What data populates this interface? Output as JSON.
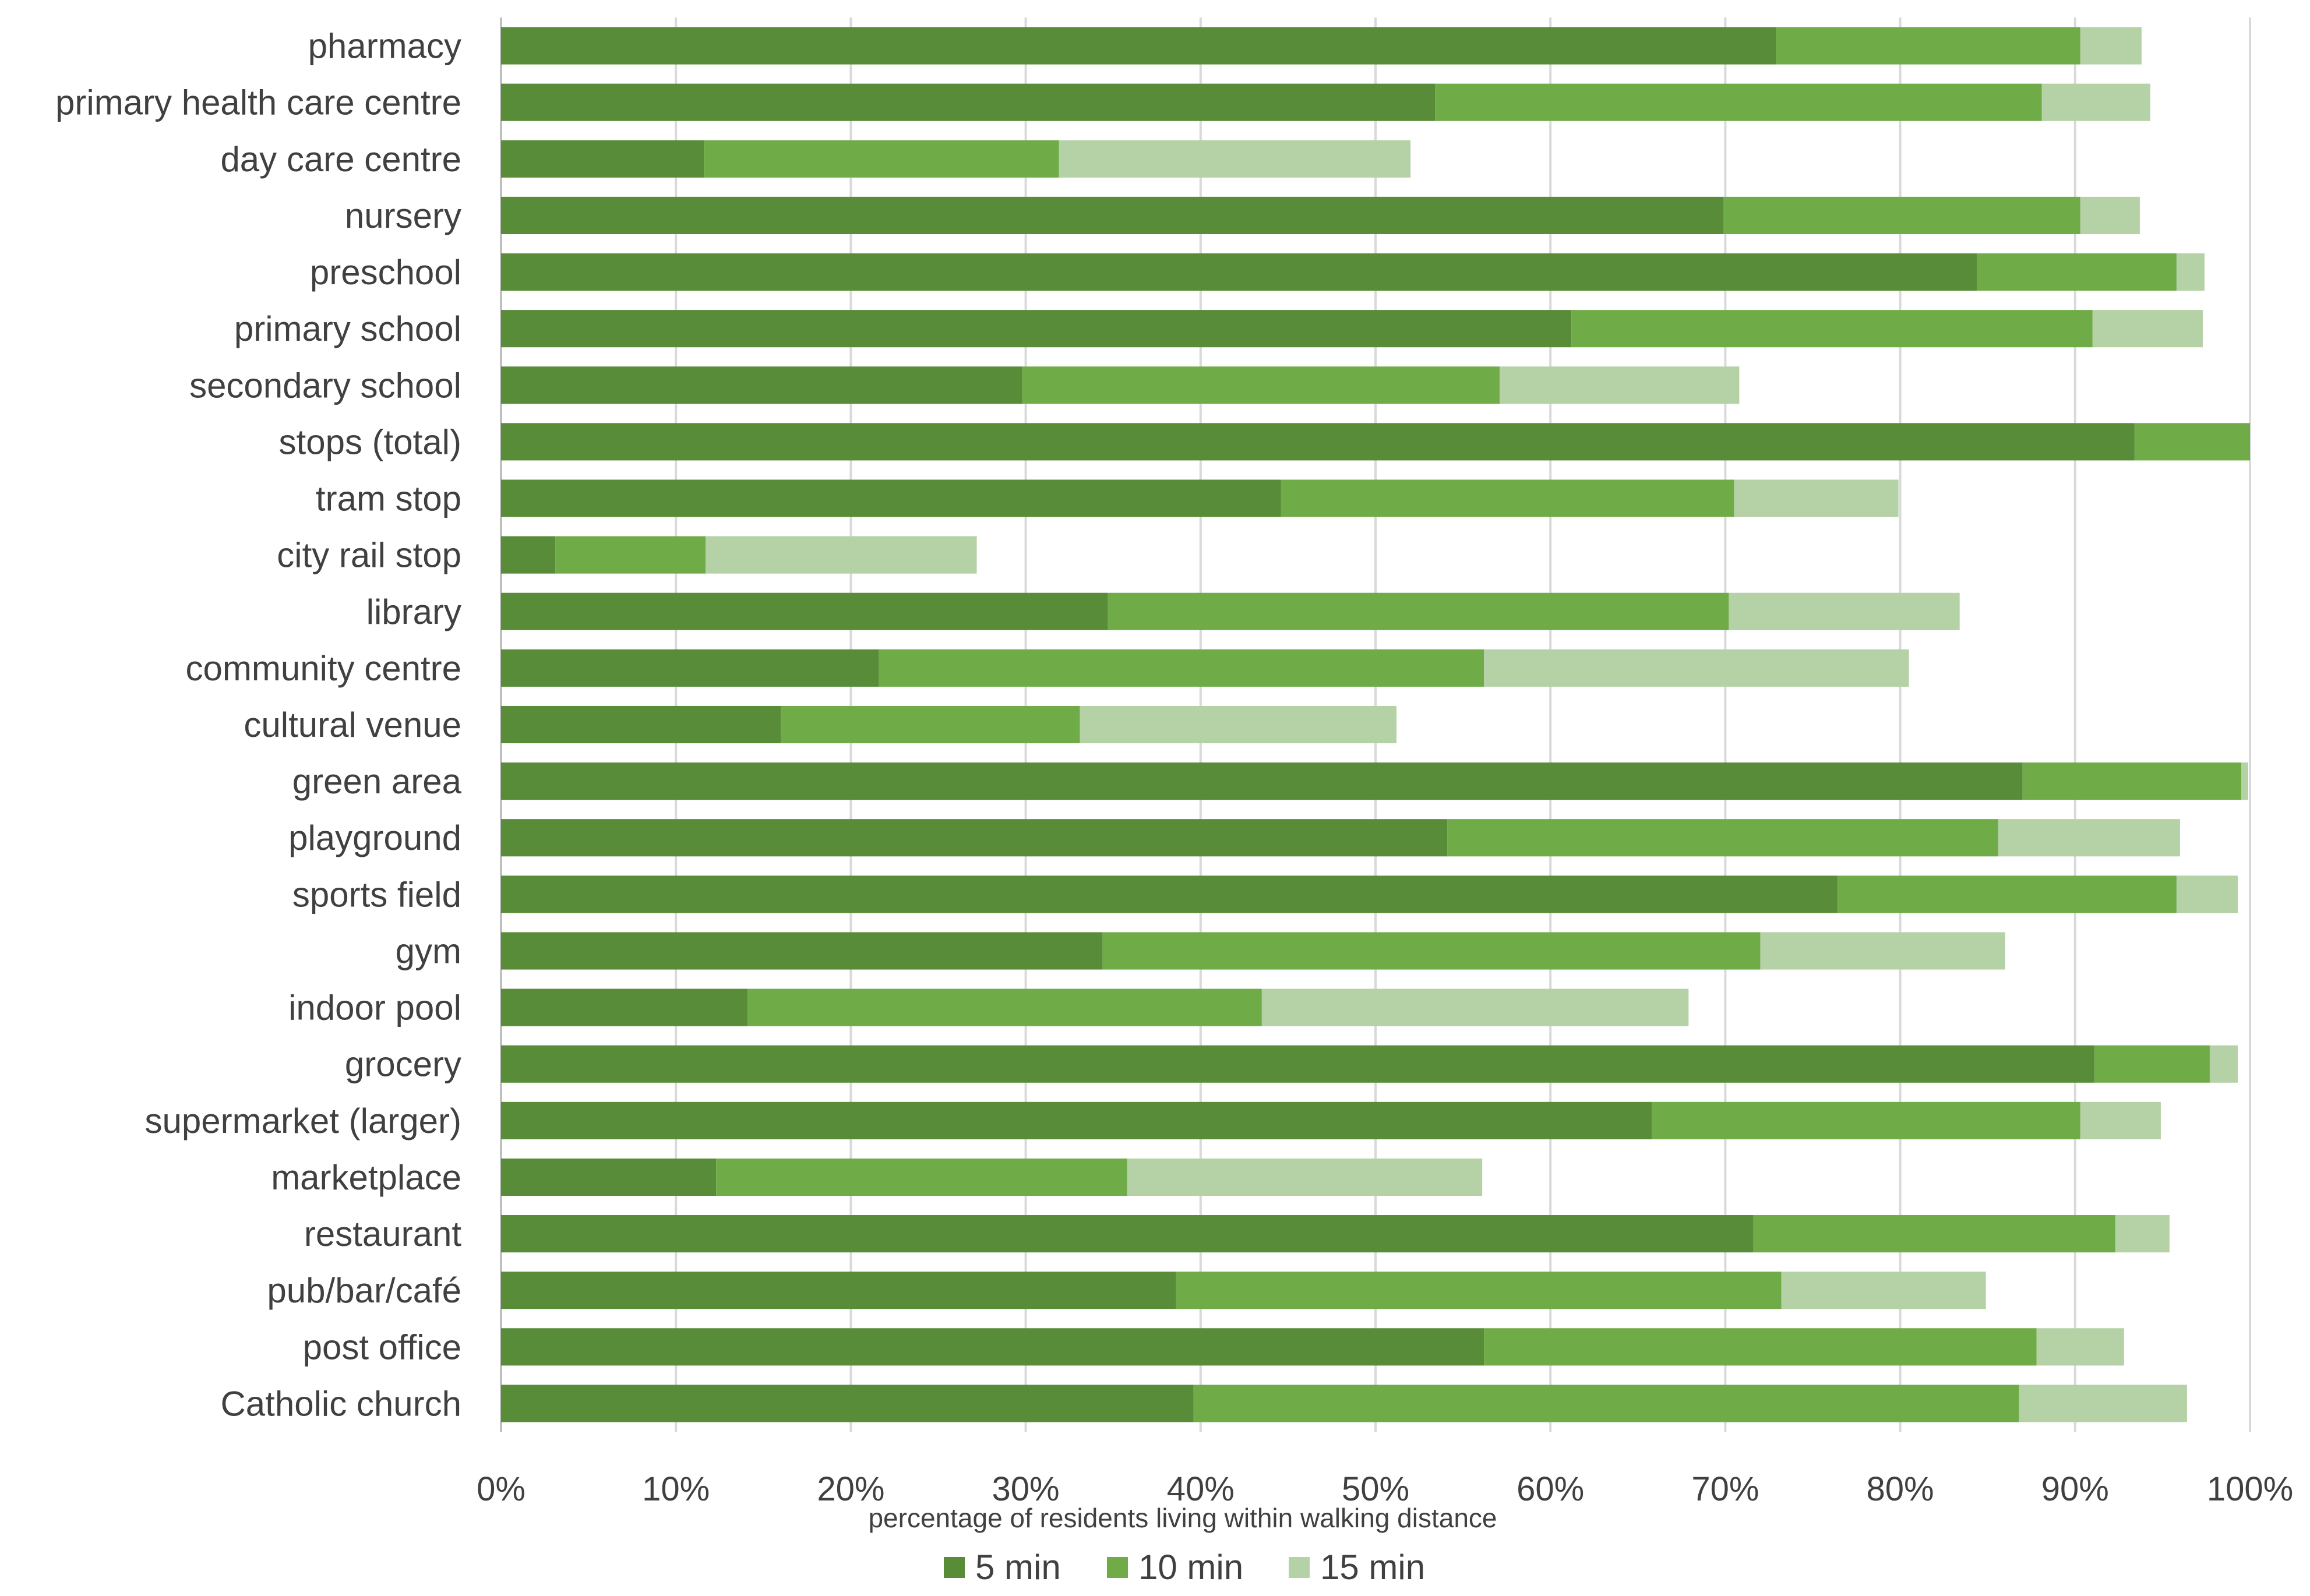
{
  "chart_data": {
    "type": "bar",
    "orientation": "horizontal",
    "stacked": true,
    "xlabel": "percentage of residents living within walking distance",
    "xlim": [
      0,
      100
    ],
    "xticks": [
      "0%",
      "10%",
      "20%",
      "30%",
      "40%",
      "50%",
      "60%",
      "70%",
      "80%",
      "90%",
      "100%"
    ],
    "grid": "vertical",
    "legend_position": "bottom",
    "categories": [
      "pharmacy",
      "primary health care centre",
      "day care centre",
      "nursery",
      "preschool",
      "primary school",
      "secondary school",
      "stops (total)",
      "tram stop",
      "city rail stop",
      "library",
      "community centre",
      "cultural venue",
      "green area",
      "playground",
      "sports field",
      "gym",
      "indoor pool",
      "grocery",
      "supermarket (larger)",
      "marketplace",
      "restaurant",
      "pub/bar/café",
      "post office",
      "Catholic church"
    ],
    "series": [
      {
        "name": "5 min",
        "color": "#588c38",
        "values": [
          72.9,
          53.4,
          11.6,
          69.9,
          84.4,
          61.2,
          29.8,
          93.4,
          44.6,
          3.1,
          34.7,
          21.6,
          16.0,
          87.0,
          54.1,
          76.4,
          34.4,
          14.1,
          91.1,
          65.8,
          12.3,
          71.6,
          38.6,
          56.2,
          39.6
        ]
      },
      {
        "name": "10 min",
        "color": "#6fac47",
        "values": [
          17.4,
          34.7,
          20.3,
          20.4,
          11.4,
          29.8,
          27.3,
          6.6,
          25.9,
          8.6,
          35.5,
          34.6,
          17.1,
          12.5,
          31.5,
          19.4,
          37.6,
          29.4,
          6.6,
          24.5,
          23.5,
          20.7,
          34.6,
          31.6,
          47.2
        ]
      },
      {
        "name": "15 min",
        "color": "#b5d1a6",
        "values": [
          3.5,
          6.2,
          20.1,
          3.4,
          1.6,
          6.3,
          13.7,
          0.0,
          9.4,
          15.5,
          13.2,
          24.3,
          18.1,
          0.4,
          10.4,
          3.5,
          14.0,
          24.4,
          1.6,
          4.6,
          20.3,
          3.1,
          11.7,
          5.0,
          9.6
        ]
      }
    ]
  }
}
